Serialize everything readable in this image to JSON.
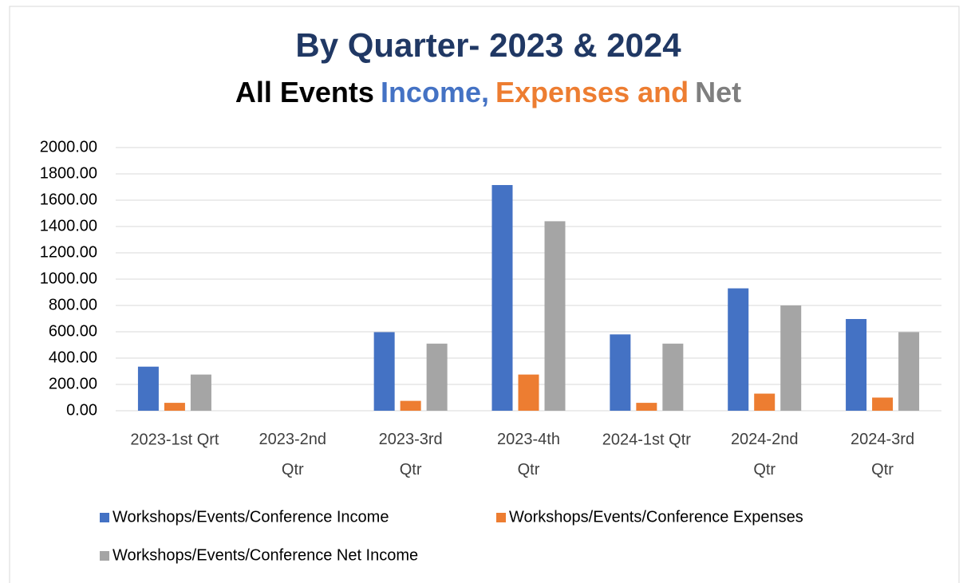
{
  "chart_data": {
    "type": "bar",
    "title": "By Quarter- 2023 & 2024",
    "subtitle_parts": [
      {
        "text": "All Events",
        "color": "#000000"
      },
      {
        "text": "Income,",
        "color": "#4472c4"
      },
      {
        "text": "Expenses and",
        "color": "#ed7d31"
      },
      {
        "text": "Net",
        "color": "#7f7f7f"
      }
    ],
    "categories": [
      "2023-1st Qrt",
      "2023-2nd Qtr",
      "2023-3rd Qtr",
      "2023-4th Qtr",
      "2024-1st Qtr",
      "2024-2nd Qtr",
      "2024-3rd Qtr"
    ],
    "series": [
      {
        "name": "Workshops/Events/Conference Income",
        "color": "#4472c4",
        "values": [
          335,
          0,
          597,
          1715,
          580,
          930,
          697
        ]
      },
      {
        "name": "Workshops/Events/Conference Expenses",
        "color": "#ed7d31",
        "values": [
          60,
          0,
          75,
          275,
          60,
          130,
          100
        ]
      },
      {
        "name": "Workshops/Events/Conference Net Income",
        "color": "#a5a5a5",
        "values": [
          275,
          0,
          510,
          1440,
          510,
          800,
          597
        ]
      }
    ],
    "ylim": [
      0,
      2000
    ],
    "yticks": [
      {
        "value": 0,
        "label": "0.00"
      },
      {
        "value": 200,
        "label": "200.00"
      },
      {
        "value": 400,
        "label": "400.00"
      },
      {
        "value": 600,
        "label": "600.00"
      },
      {
        "value": 800,
        "label": "800.00"
      },
      {
        "value": 1000,
        "label": "1000.00"
      },
      {
        "value": 1200,
        "label": "1200.00"
      },
      {
        "value": 1400,
        "label": "1400.00"
      },
      {
        "value": 1600,
        "label": "1600.00"
      },
      {
        "value": 1800,
        "label": "1800.00"
      },
      {
        "value": 2000,
        "label": "2000.00"
      }
    ],
    "grid": true
  }
}
